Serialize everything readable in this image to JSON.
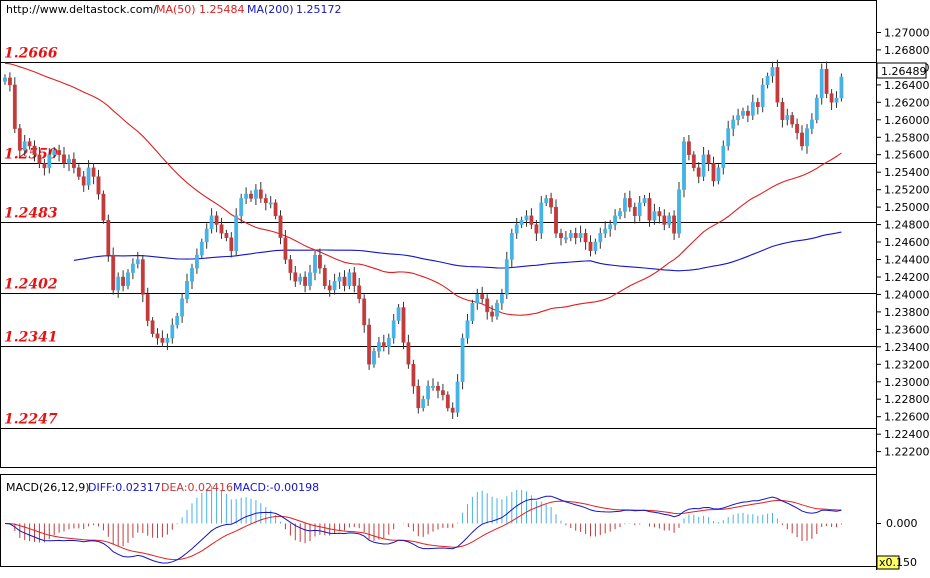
{
  "header": {
    "site": "http://www.deltastock.com/",
    "ma50_label": "MA(50)",
    "ma50_value": "1.25484",
    "ma200_label": "MA(200)",
    "ma200_value": "1.25172"
  },
  "macd_header": {
    "name": "MACD(26,12,9)",
    "diff": "DIFF:0.02317",
    "dea": "DEA:0.02416",
    "macd": "MACD:-0.00198"
  },
  "price_box": "1.26489",
  "scale_box": "x0.1",
  "macd_tick_zero": "0.000",
  "macd_tick_bottom": "50",
  "colors": {
    "up": "#45b3e6",
    "down": "#c43a3a",
    "ma50": "#e02020",
    "ma200": "#1515c8",
    "level_text": "#e41212"
  },
  "chart_data": [
    {
      "type": "candlestick",
      "ylim": [
        1.2212,
        1.2716
      ],
      "y_ticks": [
        "1.27000",
        "1.26800",
        "1.26600",
        "1.26400",
        "1.26200",
        "1.26000",
        "1.25800",
        "1.25600",
        "1.25400",
        "1.25200",
        "1.25000",
        "1.24800",
        "1.24600",
        "1.24400",
        "1.24200",
        "1.24000",
        "1.23800",
        "1.23600",
        "1.23400",
        "1.23200",
        "1.23000",
        "1.22800",
        "1.22600",
        "1.22400",
        "1.22200"
      ],
      "levels": [
        {
          "label": "1.2666",
          "value": 1.2666
        },
        {
          "label": "1.2550",
          "value": 1.255
        },
        {
          "label": "1.2483",
          "value": 1.2483
        },
        {
          "label": "1.2402",
          "value": 1.2402
        },
        {
          "label": "1.2341",
          "value": 1.2341
        },
        {
          "label": "1.2247",
          "value": 1.2247
        }
      ],
      "closes": [
        1.2648,
        1.264,
        1.259,
        1.2565,
        1.2575,
        1.257,
        1.256,
        1.255,
        1.2545,
        1.256,
        1.2565,
        1.256,
        1.255,
        1.2555,
        1.2545,
        1.2535,
        1.2525,
        1.2545,
        1.2535,
        1.2515,
        1.2485,
        1.2445,
        1.2405,
        1.242,
        1.241,
        1.2425,
        1.2435,
        1.244,
        1.24,
        1.237,
        1.2355,
        1.235,
        1.2345,
        1.235,
        1.2365,
        1.2375,
        1.2395,
        1.2415,
        1.243,
        1.2445,
        1.246,
        1.2475,
        1.249,
        1.248,
        1.247,
        1.2465,
        1.245,
        1.249,
        1.251,
        1.2515,
        1.251,
        1.252,
        1.251,
        1.2505,
        1.2505,
        1.249,
        1.2465,
        1.244,
        1.2425,
        1.2415,
        1.242,
        1.241,
        1.2425,
        1.2445,
        1.243,
        1.241,
        1.2405,
        1.2415,
        1.242,
        1.241,
        1.2425,
        1.241,
        1.2395,
        1.2365,
        1.232,
        1.2335,
        1.2345,
        1.234,
        1.235,
        1.237,
        1.2385,
        1.2345,
        1.232,
        1.2295,
        1.227,
        1.228,
        1.2295,
        1.2295,
        1.229,
        1.2285,
        1.227,
        1.2265,
        1.23,
        1.235,
        1.237,
        1.239,
        1.24,
        1.2395,
        1.238,
        1.2375,
        1.239,
        1.24,
        1.244,
        1.247,
        1.248,
        1.2485,
        1.249,
        1.248,
        1.247,
        1.2505,
        1.251,
        1.25,
        1.247,
        1.2465,
        1.2465,
        1.247,
        1.2465,
        1.247,
        1.246,
        1.245,
        1.246,
        1.247,
        1.2475,
        1.248,
        1.249,
        1.2495,
        1.251,
        1.25,
        1.249,
        1.2505,
        1.251,
        1.2485,
        1.2495,
        1.249,
        1.248,
        1.249,
        1.247,
        1.252,
        1.2575,
        1.256,
        1.2545,
        1.2535,
        1.256,
        1.255,
        1.253,
        1.2545,
        1.257,
        1.259,
        1.26,
        1.2605,
        1.261,
        1.2605,
        1.262,
        1.2615,
        1.264,
        1.265,
        1.266,
        1.262,
        1.26,
        1.2605,
        1.2595,
        1.2585,
        1.257,
        1.259,
        1.26,
        1.2625,
        1.2658,
        1.263,
        1.262,
        1.2625,
        1.2649
      ]
    },
    {
      "type": "macd",
      "ylim": [
        -0.03,
        0.02
      ]
    }
  ]
}
